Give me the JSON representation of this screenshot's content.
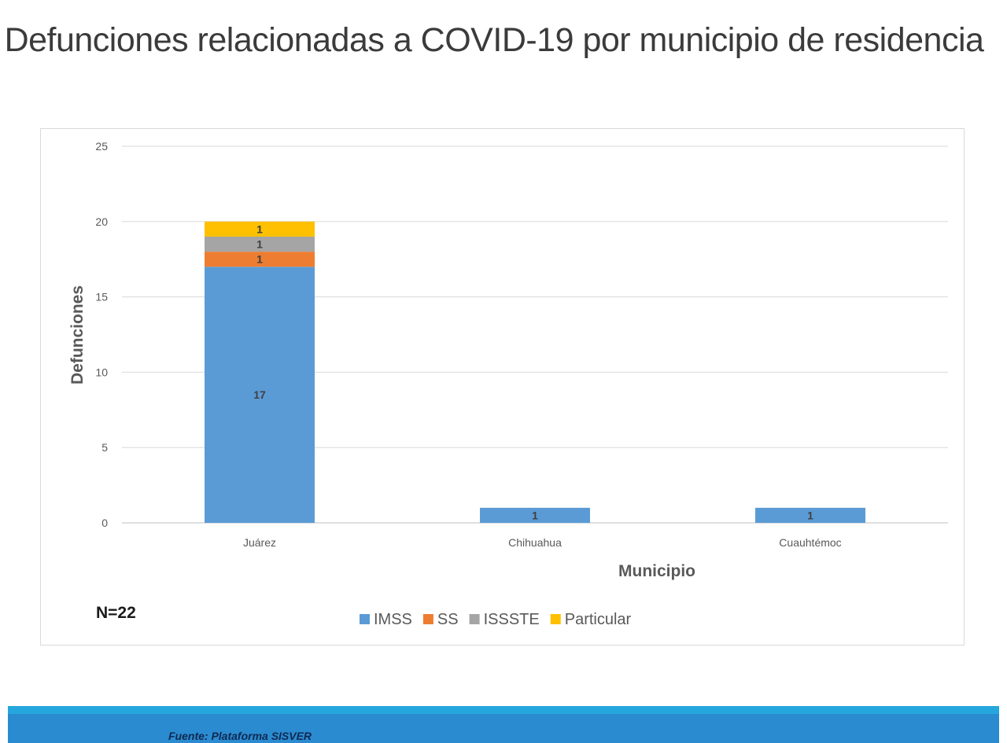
{
  "slide": {
    "title": "Defunciones relacionadas a COVID-19 por municipio de residencia",
    "n_label": "N=22",
    "footer_source": "Fuente: Plataforma SISVER"
  },
  "colors": {
    "IMSS": "#5b9bd5",
    "SS": "#ed7d31",
    "ISSSTE": "#a5a5a5",
    "Particular": "#ffc000",
    "footer": "#2b8bd0"
  },
  "chart_data": {
    "type": "bar",
    "stacked": true,
    "categories": [
      "Juárez",
      "Chihuahua",
      "Cuauhtémoc"
    ],
    "series": [
      {
        "name": "IMSS",
        "values": [
          17,
          1,
          1
        ],
        "color": "#5b9bd5"
      },
      {
        "name": "SS",
        "values": [
          1,
          0,
          0
        ],
        "color": "#ed7d31"
      },
      {
        "name": "ISSSTE",
        "values": [
          1,
          0,
          0
        ],
        "color": "#a5a5a5"
      },
      {
        "name": "Particular",
        "values": [
          1,
          0,
          0
        ],
        "color": "#ffc000"
      }
    ],
    "xlabel": "Municipio",
    "ylabel": "Defunciones",
    "ylim": [
      0,
      25
    ],
    "yticks": [
      0,
      5,
      10,
      15,
      20,
      25
    ],
    "grid": true,
    "legend": "bottom"
  }
}
